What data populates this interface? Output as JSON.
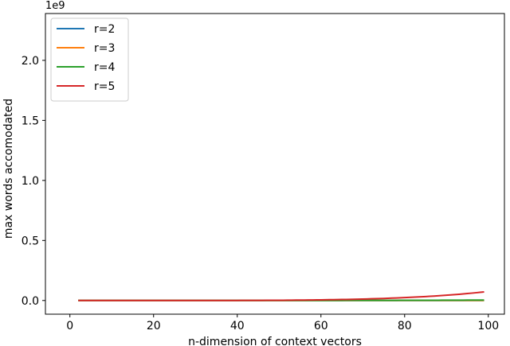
{
  "chart_data": {
    "type": "line",
    "title": "",
    "xlabel": "n-dimension of context vectors",
    "ylabel": "max words accomodated",
    "y_offset_label": "1e9",
    "xlim": [
      -5.85,
      103.85
    ],
    "ylim": [
      -0.114,
      2.39
    ],
    "xticks": [
      0,
      20,
      40,
      60,
      80,
      100
    ],
    "xtick_labels": [
      "0",
      "20",
      "40",
      "60",
      "80",
      "100"
    ],
    "yticks": [
      0.0,
      0.5,
      1.0,
      1.5,
      2.0
    ],
    "ytick_labels": [
      "0.0",
      "0.5",
      "1.0",
      "1.5",
      "2.0"
    ],
    "y_multiplier": 1000000000,
    "grid": false,
    "legend_position": "top-left",
    "x_range": [
      2,
      99
    ],
    "series": [
      {
        "name": "r=2",
        "color": "#1f77b4",
        "r": 2
      },
      {
        "name": "r=3",
        "color": "#ff7f0e",
        "r": 3
      },
      {
        "name": "r=4",
        "color": "#2ca02c",
        "r": 4
      },
      {
        "name": "r=5",
        "color": "#d62728",
        "r": 5
      }
    ]
  }
}
